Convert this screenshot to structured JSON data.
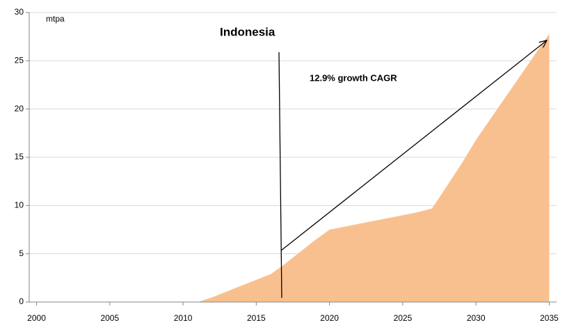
{
  "chart_data": {
    "type": "area",
    "title": "Indonesia",
    "y_unit": "mtpa",
    "annotation": "12.9% growth CAGR",
    "x": [
      2011,
      2012,
      2013,
      2014,
      2015,
      2016,
      2017,
      2018,
      2019,
      2020,
      2021,
      2022,
      2023,
      2024,
      2025,
      2026,
      2027,
      2028,
      2029,
      2030,
      2031,
      2032,
      2033,
      2034,
      2035
    ],
    "values": [
      0,
      0.5,
      1.1,
      1.7,
      2.3,
      2.9,
      4.0,
      5.2,
      6.4,
      7.5,
      7.8,
      8.1,
      8.4,
      8.7,
      9.0,
      9.3,
      9.7,
      12.0,
      14.3,
      16.8,
      19.0,
      21.2,
      23.4,
      25.6,
      27.8
    ],
    "color": "#f9c08f",
    "xlim": [
      1999.5,
      2035.5
    ],
    "xticks": [
      2000,
      2005,
      2010,
      2015,
      2020,
      2025,
      2030,
      2035
    ],
    "ylim": [
      0,
      30
    ],
    "yticks": [
      0,
      5,
      10,
      15,
      20,
      25,
      30
    ],
    "grid": true
  }
}
